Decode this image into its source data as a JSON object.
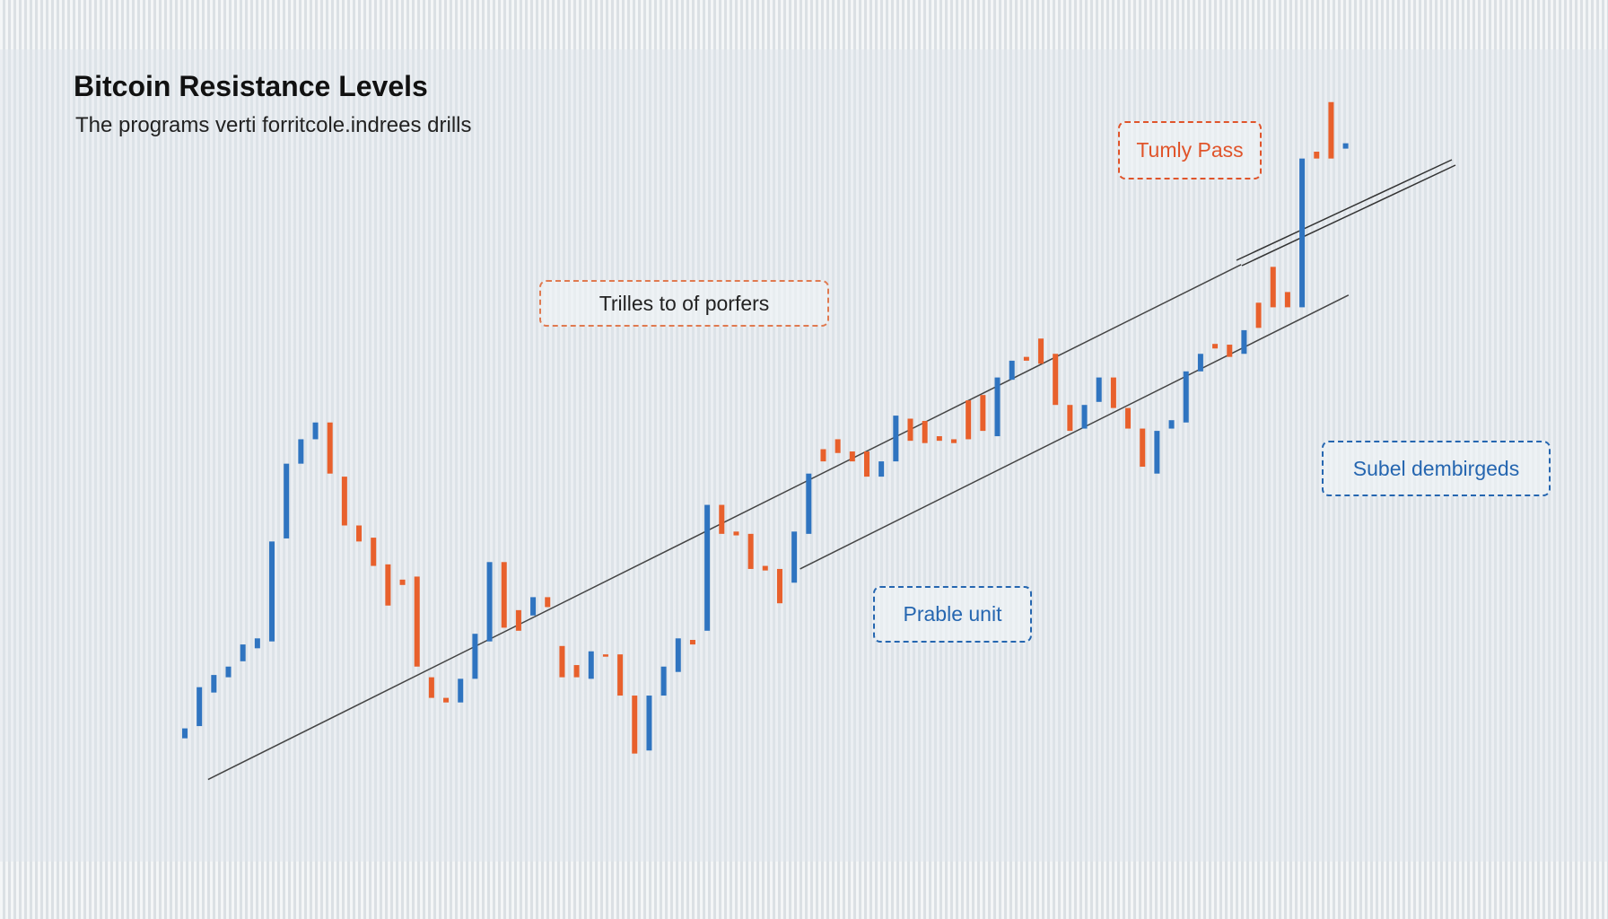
{
  "chart_data": {
    "type": "candlestick",
    "title": "Bitcoin Resistance Levels",
    "subtitle": "The programs verti forritcole.indrees drills",
    "ylim": [
      0,
      100
    ],
    "up_color": "#2f74c0",
    "down_color": "#e8602c",
    "candles": [
      {
        "open": 9.1,
        "close": 10.4
      },
      {
        "open": 10.7,
        "close": 15.8
      },
      {
        "open": 15.1,
        "close": 17.4
      },
      {
        "open": 17.1,
        "close": 18.5
      },
      {
        "open": 19.2,
        "close": 21.4
      },
      {
        "open": 20.9,
        "close": 22.2
      },
      {
        "open": 21.8,
        "close": 34.9
      },
      {
        "open": 35.3,
        "close": 45.1
      },
      {
        "open": 45.1,
        "close": 48.3
      },
      {
        "open": 48.3,
        "close": 50.5
      },
      {
        "open": 50.5,
        "close": 43.8
      },
      {
        "open": 43.4,
        "close": 37.0
      },
      {
        "open": 37.0,
        "close": 34.9
      },
      {
        "open": 35.4,
        "close": 31.7
      },
      {
        "open": 31.9,
        "close": 26.5
      },
      {
        "open": 29.9,
        "close": 29.2
      },
      {
        "open": 30.3,
        "close": 18.5
      },
      {
        "open": 17.1,
        "close": 14.4
      },
      {
        "open": 14.4,
        "close": 13.8
      },
      {
        "open": 13.8,
        "close": 16.9
      },
      {
        "open": 16.9,
        "close": 22.8
      },
      {
        "open": 21.8,
        "close": 32.2
      },
      {
        "open": 32.2,
        "close": 23.6
      },
      {
        "open": 25.9,
        "close": 23.2
      },
      {
        "open": 25.2,
        "close": 27.6
      },
      {
        "open": 27.6,
        "close": 26.3
      },
      {
        "open": 21.2,
        "close": 17.1
      },
      {
        "open": 18.7,
        "close": 17.1
      },
      {
        "open": 16.9,
        "close": 20.5
      },
      {
        "open": 20.1,
        "close": 19.8
      },
      {
        "open": 20.1,
        "close": 14.7
      },
      {
        "open": 14.7,
        "close": 7.1
      },
      {
        "open": 7.5,
        "close": 14.7
      },
      {
        "open": 14.7,
        "close": 18.5
      },
      {
        "open": 17.8,
        "close": 22.2
      },
      {
        "open": 22.0,
        "close": 21.4
      },
      {
        "open": 23.2,
        "close": 39.7
      },
      {
        "open": 39.7,
        "close": 35.9
      },
      {
        "open": 36.2,
        "close": 35.7
      },
      {
        "open": 35.9,
        "close": 31.3
      },
      {
        "open": 31.7,
        "close": 31.1
      },
      {
        "open": 31.3,
        "close": 26.8
      },
      {
        "open": 29.5,
        "close": 36.2
      },
      {
        "open": 35.9,
        "close": 43.8
      },
      {
        "open": 47.0,
        "close": 45.4
      },
      {
        "open": 48.3,
        "close": 46.5
      },
      {
        "open": 46.7,
        "close": 45.4
      },
      {
        "open": 46.7,
        "close": 43.4
      },
      {
        "open": 43.4,
        "close": 45.4
      },
      {
        "open": 45.4,
        "close": 51.4
      },
      {
        "open": 51.0,
        "close": 48.1
      },
      {
        "open": 50.7,
        "close": 47.8
      },
      {
        "open": 48.7,
        "close": 48.1
      },
      {
        "open": 48.3,
        "close": 47.8
      },
      {
        "open": 53.4,
        "close": 48.3
      },
      {
        "open": 54.1,
        "close": 49.4
      },
      {
        "open": 48.7,
        "close": 56.4
      },
      {
        "open": 56.1,
        "close": 58.6
      },
      {
        "open": 59.1,
        "close": 58.6
      },
      {
        "open": 61.5,
        "close": 58.2
      },
      {
        "open": 59.5,
        "close": 52.8
      },
      {
        "open": 52.8,
        "close": 49.4
      },
      {
        "open": 49.7,
        "close": 52.8
      },
      {
        "open": 53.2,
        "close": 56.4
      },
      {
        "open": 56.4,
        "close": 52.4
      },
      {
        "open": 52.4,
        "close": 49.7
      },
      {
        "open": 49.7,
        "close": 44.7
      },
      {
        "open": 43.8,
        "close": 49.4
      },
      {
        "open": 49.7,
        "close": 50.8
      },
      {
        "open": 50.5,
        "close": 57.2
      },
      {
        "open": 57.2,
        "close": 59.5
      },
      {
        "open": 60.8,
        "close": 60.2
      },
      {
        "open": 60.7,
        "close": 59.1
      },
      {
        "open": 59.5,
        "close": 62.6
      },
      {
        "open": 66.2,
        "close": 62.9
      },
      {
        "open": 70.9,
        "close": 65.6
      },
      {
        "open": 67.6,
        "close": 65.6
      },
      {
        "open": 65.6,
        "close": 85.1
      },
      {
        "open": 86.0,
        "close": 85.1
      },
      {
        "open": 92.5,
        "close": 85.1
      },
      {
        "open": 86.4,
        "close": 87.1
      }
    ],
    "trendlines": [
      {
        "x": [
          1.6,
          72.8
        ],
        "values": [
          3.7,
          71.2
        ]
      },
      {
        "x": [
          42.4,
          80.2
        ],
        "values": [
          31.3,
          67.2
        ]
      }
    ],
    "annotations": [
      {
        "text": "Tumly Pass",
        "color": "#e0542a",
        "border": "#e0542a"
      },
      {
        "text": "Trilles to of porfers",
        "color": "#222222",
        "border": "#e07a50"
      },
      {
        "text": "Subel dembirgeds",
        "color": "#2566b0",
        "border": "#2566b0"
      },
      {
        "text": "Prable unit",
        "color": "#2566b0",
        "border": "#2566b0"
      }
    ]
  }
}
